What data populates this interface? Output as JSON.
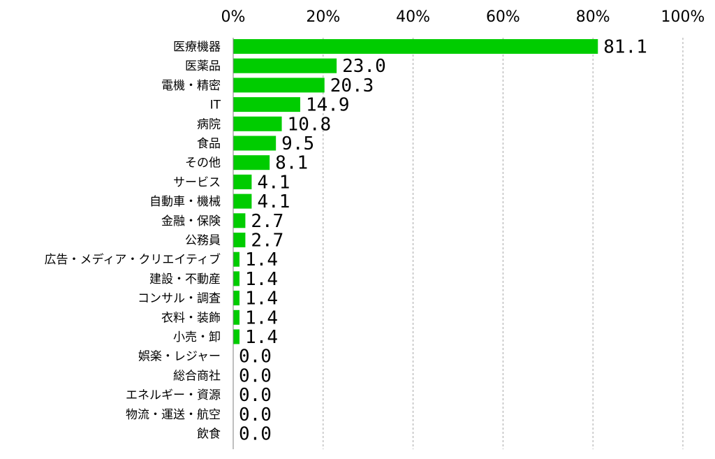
{
  "chart_data": {
    "type": "bar",
    "orientation": "horizontal",
    "title": "",
    "xlabel": "",
    "ylabel": "",
    "xlim": [
      0,
      100
    ],
    "x_ticks": [
      "0%",
      "20%",
      "40%",
      "60%",
      "80%",
      "100%"
    ],
    "grid": true,
    "bar_color": "#00cc00",
    "categories": [
      "医療機器",
      "医薬品",
      "電機・精密",
      "IT",
      "病院",
      "食品",
      "その他",
      "サービス",
      "自動車・機械",
      "金融・保険",
      "公務員",
      "広告・メディア・クリエイティブ",
      "建設・不動産",
      "コンサル・調査",
      "衣料・装飾",
      "小売・卸",
      "娯楽・レジャー",
      "総合商社",
      "エネルギー・資源",
      "物流・運送・航空",
      "飲食"
    ],
    "values": [
      81.1,
      23.0,
      20.3,
      14.9,
      10.8,
      9.5,
      8.1,
      4.1,
      4.1,
      2.7,
      2.7,
      1.4,
      1.4,
      1.4,
      1.4,
      1.4,
      0.0,
      0.0,
      0.0,
      0.0,
      0.0
    ],
    "value_labels": [
      "81.1",
      "23.0",
      "20.3",
      "14.9",
      "10.8",
      "9.5",
      "8.1",
      "4.1",
      "4.1",
      "2.7",
      "2.7",
      "1.4",
      "1.4",
      "1.4",
      "1.4",
      "1.4",
      "0.0",
      "0.0",
      "0.0",
      "0.0",
      "0.0"
    ]
  }
}
